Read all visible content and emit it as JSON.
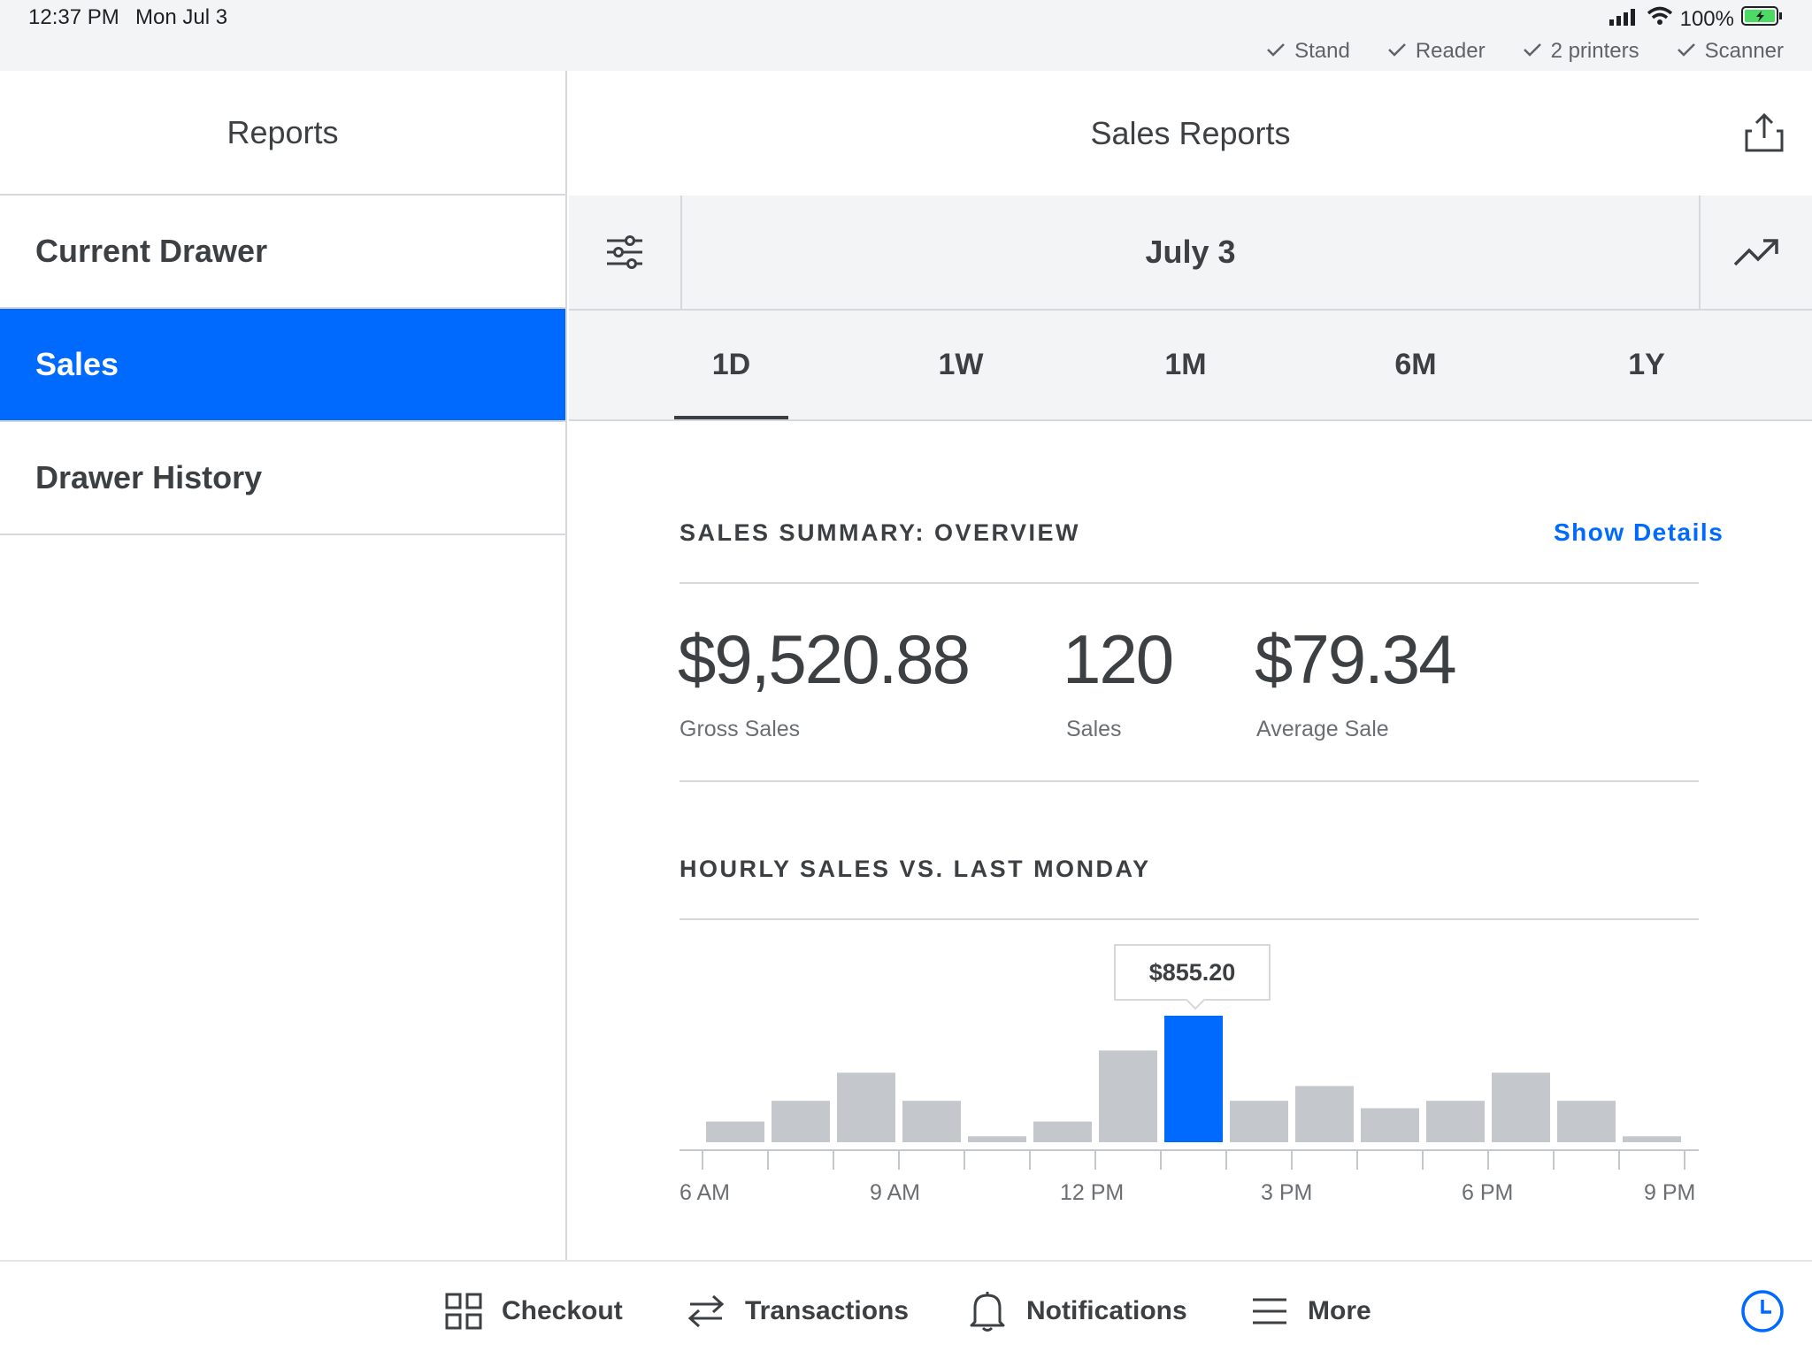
{
  "status_bar": {
    "time": "12:37 PM",
    "date": "Mon Jul 3",
    "battery": "100%",
    "hardware": [
      {
        "label": "Stand"
      },
      {
        "label": "Reader"
      },
      {
        "label": "2 printers"
      },
      {
        "label": "Scanner"
      }
    ]
  },
  "sidebar": {
    "title": "Reports",
    "items": [
      {
        "label": "Current Drawer"
      },
      {
        "label": "Sales"
      },
      {
        "label": "Drawer History"
      }
    ]
  },
  "main": {
    "title": "Sales Reports",
    "date_label": "July 3",
    "ranges": [
      "1D",
      "1W",
      "1M",
      "6M",
      "1Y"
    ],
    "selected_range": "1D",
    "summary": {
      "title": "SALES SUMMARY: OVERVIEW",
      "show_details": "Show Details",
      "gross_sales": {
        "value": "$9,520.88",
        "label": "Gross Sales"
      },
      "sales_count": {
        "value": "120",
        "label": "Sales"
      },
      "average_sale": {
        "value": "$79.34",
        "label": "Average Sale"
      }
    },
    "hourly": {
      "title": "HOURLY SALES VS. LAST MONDAY",
      "tooltip": "$855.20"
    }
  },
  "chart_data": {
    "type": "bar",
    "title": "HOURLY SALES VS. LAST MONDAY",
    "categories": [
      "6 AM",
      "7 AM",
      "8 AM",
      "9 AM",
      "10 AM",
      "11 AM",
      "12 PM",
      "1 PM",
      "2 PM",
      "3 PM",
      "4 PM",
      "5 PM",
      "6 PM",
      "7 PM",
      "8 PM"
    ],
    "values": [
      140,
      280,
      470,
      280,
      40,
      140,
      620,
      855.2,
      280,
      380,
      230,
      280,
      470,
      280,
      40
    ],
    "highlight_index": 7,
    "tick_labels": [
      "6 AM",
      "9 AM",
      "12 PM",
      "3 PM",
      "6 PM",
      "9 PM"
    ],
    "ylim": [
      0,
      855.2
    ],
    "colors": {
      "bar": "#c4c7cb",
      "highlight": "#006aff"
    }
  },
  "tabbar": {
    "items": [
      {
        "label": "Checkout",
        "icon": "grid-icon"
      },
      {
        "label": "Transactions",
        "icon": "arrows-icon"
      },
      {
        "label": "Notifications",
        "icon": "bell-icon"
      },
      {
        "label": "More",
        "icon": "menu-icon"
      }
    ]
  },
  "colors": {
    "accent": "#006aff",
    "text": "#3c4043",
    "muted": "#6b6f73",
    "divider": "#d6d8db",
    "panel": "#f3f4f6"
  }
}
